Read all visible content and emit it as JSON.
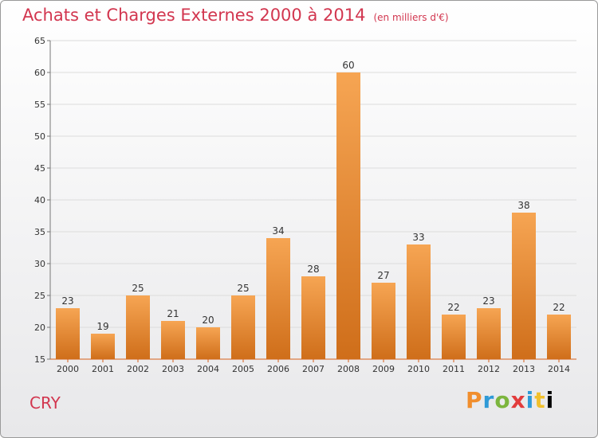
{
  "header": {
    "title": "Achats et Charges Externes 2000 à 2014",
    "subtitle": "(en milliers d'€)"
  },
  "footer": {
    "place": "CRY",
    "brand": "Proxiti"
  },
  "colors": {
    "title": "#d2364f",
    "bar_light": "#f6a553",
    "bar_dark": "#cf6e1a",
    "axis": "#d8601a"
  },
  "chart_data": {
    "type": "bar",
    "title": "Achats et Charges Externes 2000 à 2014",
    "subtitle": "(en milliers d'€)",
    "xlabel": "",
    "ylabel": "",
    "categories": [
      "2000",
      "2001",
      "2002",
      "2003",
      "2004",
      "2005",
      "2006",
      "2007",
      "2008",
      "2009",
      "2010",
      "2011",
      "2012",
      "2013",
      "2014"
    ],
    "values": [
      23,
      19,
      25,
      21,
      20,
      25,
      34,
      28,
      60,
      27,
      33,
      22,
      23,
      38,
      22
    ],
    "ylim": [
      15,
      65
    ],
    "yticks": [
      15,
      20,
      25,
      30,
      35,
      40,
      45,
      50,
      55,
      60,
      65
    ],
    "grid": true,
    "legend": "none"
  }
}
